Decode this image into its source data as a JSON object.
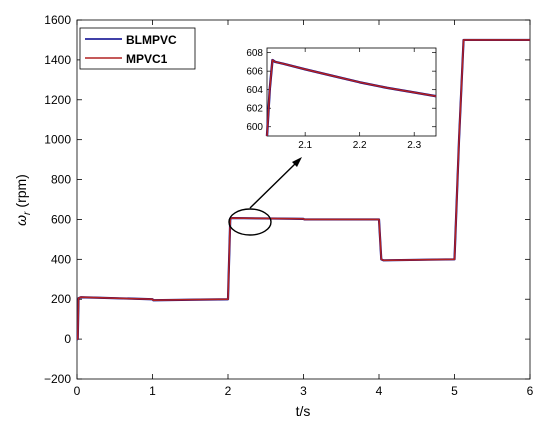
{
  "chart_data": {
    "type": "line",
    "xlabel": "t/s",
    "ylabel_symbol": "ω",
    "ylabel_subscript": "r",
    "ylabel_unit": "(rpm)",
    "xlim": [
      0,
      6
    ],
    "ylim": [
      -200,
      1600
    ],
    "xticks": [
      0,
      1,
      2,
      3,
      4,
      5,
      6
    ],
    "yticks": [
      -200,
      0,
      200,
      400,
      600,
      800,
      1000,
      1200,
      1400,
      1600
    ],
    "grid": false,
    "legend_position": "top-left",
    "series": [
      {
        "name": "BLMPVC",
        "color": "#00008b",
        "x": [
          0,
          0.01,
          0.02,
          0.05,
          1.0,
          1.01,
          2.0,
          2.03,
          2.06,
          2.5,
          3.0,
          3.01,
          4.0,
          4.03,
          4.06,
          5.0,
          5.06,
          5.12,
          5.2,
          6.0
        ],
        "y": [
          0,
          0,
          205,
          210,
          200,
          195,
          200,
          605,
          607,
          605,
          603,
          600,
          600,
          400,
          395,
          400,
          1000,
          1500,
          1500,
          1500
        ]
      },
      {
        "name": "MPVC1",
        "color": "#b22222",
        "x": [
          0,
          0.01,
          0.02,
          0.05,
          1.0,
          1.01,
          2.0,
          2.03,
          2.06,
          2.5,
          3.0,
          3.01,
          4.0,
          4.03,
          4.06,
          5.0,
          5.06,
          5.12,
          5.2,
          6.0
        ],
        "y": [
          0,
          0,
          205,
          210,
          200,
          195,
          200,
          605,
          607,
          605,
          603,
          600,
          600,
          400,
          395,
          400,
          1000,
          1500,
          1500,
          1500
        ]
      }
    ],
    "inset": {
      "xlim": [
        2.03,
        2.34
      ],
      "ylim": [
        599,
        608.5
      ],
      "xticks": [
        2.1,
        2.2,
        2.3
      ],
      "yticks": [
        600,
        602,
        604,
        606,
        608
      ],
      "series_x": [
        2.03,
        2.035,
        2.04,
        2.045,
        2.06,
        2.1,
        2.15,
        2.2,
        2.25,
        2.3,
        2.34
      ],
      "series_y": [
        599,
        604,
        607.2,
        607.0,
        606.8,
        606.2,
        605.5,
        604.8,
        604.2,
        603.7,
        603.3
      ]
    }
  },
  "colors": {
    "BLMPVC": "#00008b",
    "MPVC1": "#b22222"
  }
}
